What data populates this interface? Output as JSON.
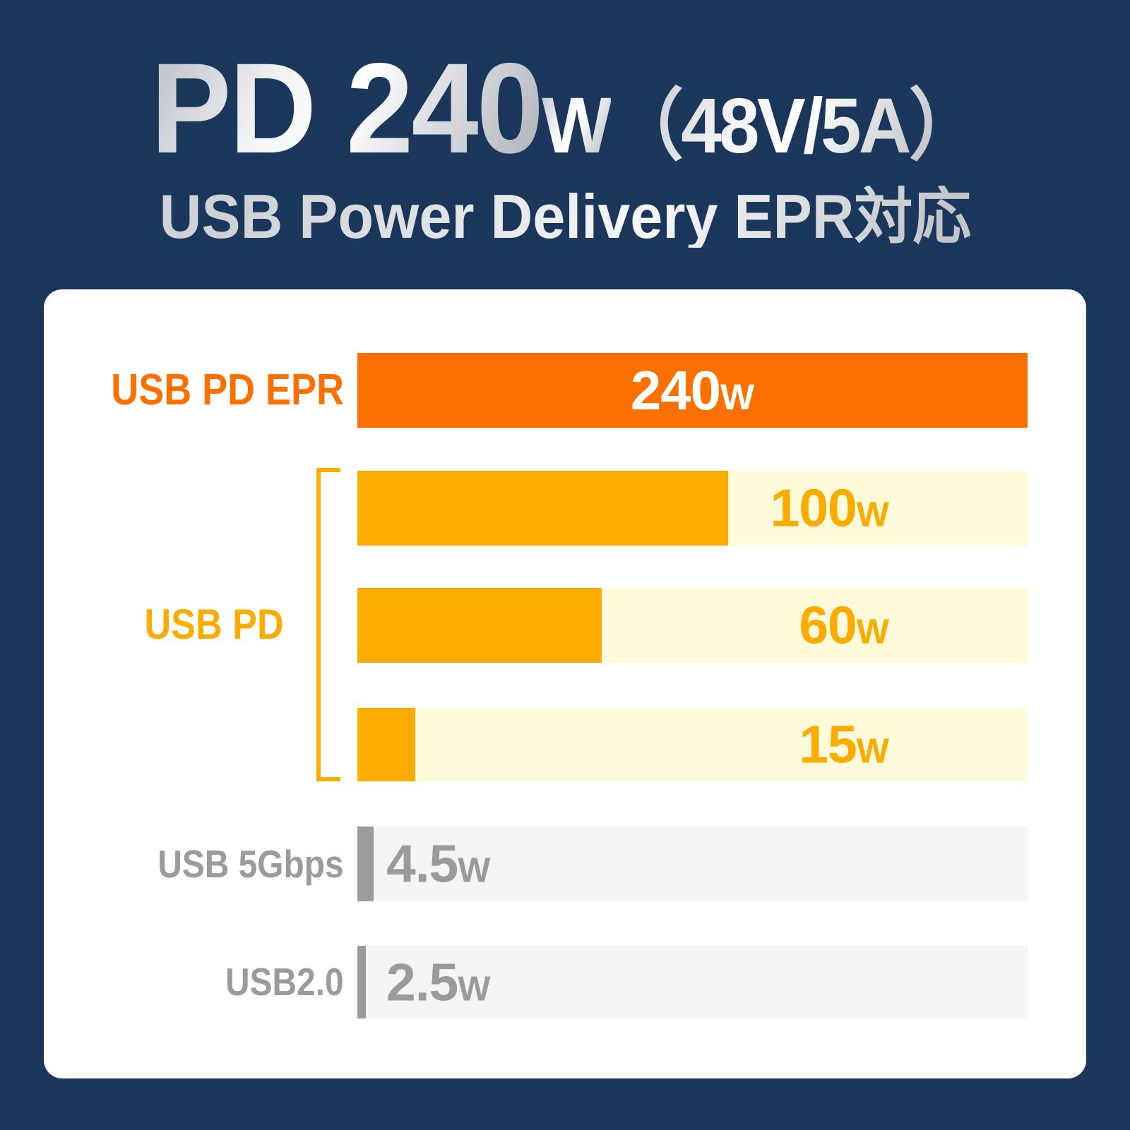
{
  "title": {
    "main": "PD 240",
    "unit": "W",
    "detail": "（48V/5A）",
    "subtitle": "USB Power Delivery EPR対応"
  },
  "rows": [
    {
      "label": "USB PD EPR",
      "num": "240",
      "unit": "W"
    },
    {
      "label": "",
      "num": "100",
      "unit": "W"
    },
    {
      "label": "",
      "num": "60",
      "unit": "W"
    },
    {
      "label": "",
      "num": "15",
      "unit": "W"
    },
    {
      "label": "USB 5Gbps",
      "num": "4.5",
      "unit": "W"
    },
    {
      "label": "USB2.0",
      "num": "2.5",
      "unit": "W"
    }
  ],
  "group_label": "USB PD",
  "colors": {
    "navy": "#1A365A",
    "orange": "#FC7000",
    "amber": "#FAAD00",
    "cream": "#FFFBDA",
    "gray": "#9B9B9B",
    "trackgray": "#F5F5F5",
    "silver": "#D9D9D9"
  },
  "chart_data": {
    "type": "bar",
    "orientation": "horizontal",
    "title": "PD 240W（48V/5A）",
    "subtitle": "USB Power Delivery EPR対応",
    "categories": [
      "USB PD EPR",
      "USB PD",
      "USB PD",
      "USB PD",
      "USB 5Gbps",
      "USB2.0"
    ],
    "values": [
      240,
      100,
      60,
      15,
      4.5,
      2.5
    ],
    "unit": "W",
    "value_labels": [
      "240W",
      "100W",
      "60W",
      "15W",
      "4.5W",
      "2.5W"
    ],
    "group": {
      "label": "USB PD",
      "members": [
        "100W",
        "60W",
        "15W"
      ]
    },
    "bar_colors": [
      "#FC7000",
      "#FAAD00",
      "#FAAD00",
      "#FAAD00",
      "#9B9B9B",
      "#9B9B9B"
    ],
    "track_colors": [
      "#FC7000",
      "#FFFBDA",
      "#FFFBDA",
      "#FFFBDA",
      "#F5F5F5",
      "#F5F5F5"
    ],
    "xlim": [
      0,
      240
    ],
    "grid": false,
    "legend": false,
    "note": "USB PD EPR bar drawn full-width; USB PD and USB bars proportional to watts"
  }
}
